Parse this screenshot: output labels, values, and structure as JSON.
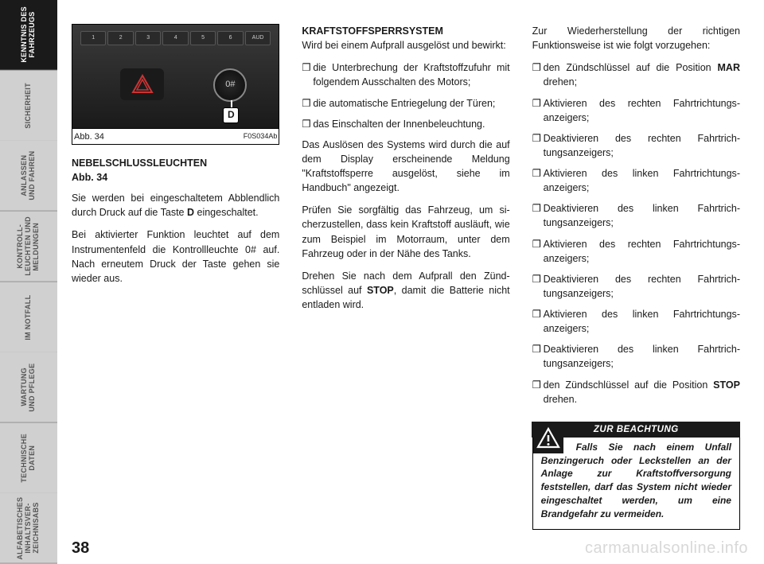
{
  "sidebar": {
    "tabs": [
      {
        "label": "KENNTNIS DES\nFAHRZEUGS",
        "active": true
      },
      {
        "label": "SICHERHEIT",
        "active": false
      },
      {
        "label": "ANLASSEN\nUND FAHREN",
        "active": false
      },
      {
        "label": "KONTROLL-\nLEUCHTEN UND\nMELDUNGEN",
        "active": false
      },
      {
        "label": "IM NOTFALL",
        "active": false
      },
      {
        "label": "WARTUNG\nUND PFLEGE",
        "active": false
      },
      {
        "label": "TECHNISCHE\nDATEN",
        "active": false
      },
      {
        "label": "ALFABETISCHES\nINHALTSVER-\nZEICHNISABS",
        "active": false
      }
    ]
  },
  "figure": {
    "caption": "Abb. 34",
    "code": "F0S034Ab",
    "callout": "D",
    "presets": [
      "1",
      "2",
      "3",
      "4",
      "5",
      "6",
      "AUD"
    ]
  },
  "col1": {
    "heading": "NEBELSCHLUSSLEUCHTEN",
    "subhead": "Abb. 34",
    "p1_a": "Sie werden bei eingeschaltetem Abblend­lich durch Druck auf die Taste ",
    "p1_b": "D",
    "p1_c": " einge­schaltet.",
    "p2": "Bei aktivierter Funktion leuchtet auf dem Instrumentenfeld die Kontrollleuchte 0# auf. Nach erneutem Druck der Taste ge­hen sie wieder aus."
  },
  "col2": {
    "heading": "KRAFTSTOFFSPERRSYSTEM",
    "p1": "Wird bei einem Aufprall ausgelöst und be­wirkt:",
    "b1": "die Unterbrechung der Kraftstoffzufuhr mit folgendem Ausschalten des Motors;",
    "b2": "die automatische Entriegelung der Türen;",
    "b3": "das Einschalten der Innenbeleuchtung.",
    "p2": "Das Auslösen des Systems wird durch die auf dem Display erscheinende Meldung \"Kraftstoffsperre ausgelöst, siehe im Handbuch\" angezeigt.",
    "p3": "Prüfen Sie sorgfältig das Fahrzeug, um si­cherzustellen, dass kein Kraftstoff ausläuft, wie zum Beispiel im Motorraum, unter dem Fahrzeug oder in der Nähe des Tanks.",
    "p4_a": "Drehen Sie nach dem Aufprall den Zünd­schlüssel auf ",
    "p4_b": "STOP",
    "p4_c": ", damit die Batterie nicht entladen wird."
  },
  "col3": {
    "p1": "Zur Wiederherstellung der richtigen Funktionsweise ist wie folgt vorzugehen:",
    "b1_a": "den Zündschlüssel auf die Position ",
    "b1_b": "MAR",
    "b1_c": " drehen;",
    "b2": "Aktivieren des rechten Fahrtrichtungs­anzeigers;",
    "b3": "Deaktivieren des rechten Fahrtrich­tungsanzeigers;",
    "b4": "Aktivieren des linken Fahrtrichtungs­anzeigers;",
    "b5": "Deaktivieren des linken Fahrtrich­tungsanzeigers;",
    "b6": "Aktivieren des rechten Fahrtrichtungs­anzeigers;",
    "b7": "Deaktivieren des rechten Fahrtrich­tungsanzeigers;",
    "b8": "Aktivieren des linken Fahrtrichtungs­anzeigers;",
    "b9": "Deaktivieren des linken Fahrtrich­tungsanzeigers;",
    "b10_a": "den Zündschlüssel auf die Position ",
    "b10_b": "STOP",
    "b10_c": " drehen."
  },
  "warning": {
    "header": "ZUR BEACHTUNG",
    "body": "Falls Sie nach einem Unfall Benzingeruch oder Leckstel­len an der Anlage zur Kraftstoffver­sorgung feststellen, darf das System nicht wieder eingeschaltet werden, um eine Brandgefahr zu vermeiden."
  },
  "pagenum": "38",
  "watermark": "carmanualsonline.info",
  "colors": {
    "text": "#1a1a1a",
    "tab_active_bg": "#1a1a1a",
    "tab_inactive_bg": "#d0d0d0",
    "watermark": "#d8d8d8"
  }
}
